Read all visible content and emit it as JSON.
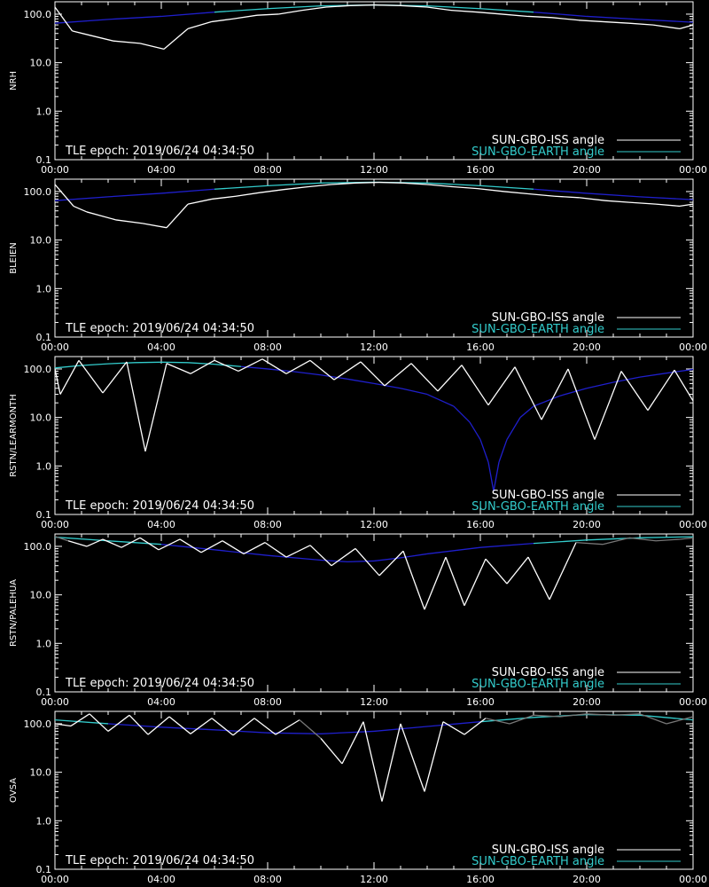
{
  "colors": {
    "background": "#000000",
    "axes": "#ffffff",
    "iss_visible": "#ffffff",
    "iss_dim": "#777777",
    "earth_high": "#33cccc",
    "earth_low": "#1f1fcc"
  },
  "legend": {
    "iss_label": "SUN-GBO-ISS angle",
    "earth_label": "SUN-GBO-EARTH angle"
  },
  "chart_data": [
    {
      "type": "line",
      "ylabel": "NRH",
      "annotation": "TLE epoch: 2019/06/24 04:34:50",
      "x_ticks": [
        "00:00",
        "04:00",
        "08:00",
        "12:00",
        "16:00",
        "20:00",
        "00:00"
      ],
      "y_ticks": [
        "0.1",
        "1.0",
        "10.0",
        "100.0"
      ],
      "xlim": [
        0,
        24
      ],
      "ylim": [
        0.1,
        180
      ],
      "yscale": "log",
      "series": [
        {
          "name": "SUN-GBO-ISS angle",
          "x": [
            0.0,
            0.65,
            1.2,
            2.2,
            3.2,
            4.1,
            5.0,
            5.9,
            6.7,
            7.6,
            8.4,
            9.3,
            10.2,
            11.1,
            12.0,
            13.0,
            14.0,
            14.9,
            15.9,
            16.8,
            17.8,
            18.7,
            19.7,
            20.6,
            21.6,
            22.5,
            23.5,
            24.0
          ],
          "y": [
            140,
            45,
            38,
            28,
            25,
            19,
            50,
            70,
            80,
            95,
            100,
            120,
            140,
            150,
            155,
            150,
            140,
            120,
            110,
            100,
            90,
            85,
            75,
            70,
            65,
            60,
            50,
            60
          ],
          "lows": [
            1,
            2,
            3,
            4,
            6,
            8,
            10,
            12,
            14,
            16,
            18,
            20,
            22,
            24,
            26
          ]
        },
        {
          "name": "SUN-GBO-EARTH angle",
          "x": [
            0,
            2,
            4,
            6,
            8,
            10,
            12,
            14,
            16,
            18,
            20,
            22,
            24
          ],
          "y": [
            65,
            78,
            90,
            110,
            130,
            148,
            155,
            148,
            130,
            110,
            90,
            78,
            68
          ]
        }
      ]
    },
    {
      "type": "line",
      "ylabel": "BLEIEN",
      "annotation": "TLE epoch: 2019/06/24 04:34:50",
      "x_ticks": [
        "00:00",
        "04:00",
        "08:00",
        "12:00",
        "16:00",
        "20:00",
        "00:00"
      ],
      "y_ticks": [
        "0.1",
        "1.0",
        "10.0",
        "100.0"
      ],
      "xlim": [
        0,
        24
      ],
      "ylim": [
        0.1,
        180
      ],
      "yscale": "log",
      "series": [
        {
          "name": "SUN-GBO-ISS angle",
          "x": [
            0.0,
            0.7,
            1.2,
            2.3,
            3.3,
            4.2,
            5.0,
            5.9,
            6.8,
            7.7,
            8.6,
            9.5,
            10.4,
            11.3,
            12.2,
            13.1,
            14.0,
            15.0,
            15.9,
            16.9,
            17.8,
            18.8,
            19.7,
            20.7,
            21.6,
            22.6,
            23.5,
            24.0
          ],
          "y": [
            140,
            50,
            38,
            26,
            22,
            18,
            55,
            70,
            80,
            95,
            110,
            125,
            140,
            150,
            155,
            150,
            140,
            125,
            115,
            100,
            90,
            80,
            75,
            65,
            60,
            55,
            50,
            55
          ],
          "lows": [
            1,
            2,
            3,
            4,
            6,
            8,
            10,
            12,
            14,
            16,
            18,
            20,
            22,
            24,
            26
          ]
        },
        {
          "name": "SUN-GBO-EARTH angle",
          "x": [
            0,
            2,
            4,
            6,
            8,
            10,
            12,
            14,
            16,
            18,
            20,
            22,
            24
          ],
          "y": [
            65,
            78,
            92,
            112,
            132,
            150,
            156,
            150,
            132,
            112,
            92,
            78,
            68
          ]
        }
      ]
    },
    {
      "type": "line",
      "ylabel": "RSTN/LEARMONTH",
      "annotation": "TLE epoch: 2019/06/24 04:34:50",
      "x_ticks": [
        "00:00",
        "04:00",
        "08:00",
        "12:00",
        "16:00",
        "20:00",
        "00:00"
      ],
      "y_ticks": [
        "0.1",
        "1.0",
        "10.0",
        "100.0"
      ],
      "xlim": [
        0,
        24
      ],
      "ylim": [
        0.1,
        180
      ],
      "yscale": "log",
      "series": [
        {
          "name": "SUN-GBO-ISS angle",
          "x": [
            0.0,
            0.2,
            0.9,
            1.8,
            2.7,
            3.4,
            4.2,
            5.1,
            6.0,
            6.9,
            7.8,
            8.7,
            9.6,
            10.5,
            11.5,
            12.4,
            13.4,
            14.4,
            15.3,
            16.3,
            17.3,
            18.3,
            19.3,
            20.3,
            21.3,
            22.3,
            23.3,
            24.0
          ],
          "y": [
            100,
            30,
            150,
            32,
            140,
            2.0,
            130,
            80,
            150,
            90,
            160,
            80,
            150,
            60,
            140,
            45,
            130,
            35,
            120,
            18,
            110,
            9,
            100,
            3.5,
            90,
            14,
            95,
            22
          ],
          "lows": [
            1,
            3,
            5,
            7,
            9,
            11,
            13,
            15,
            17,
            19,
            21,
            23,
            25,
            27
          ]
        },
        {
          "name": "SUN-GBO-EARTH angle",
          "x": [
            0,
            1,
            2,
            3,
            4,
            5,
            6,
            7,
            8,
            9,
            10,
            11,
            12,
            13,
            14,
            15,
            15.6,
            16.0,
            16.3,
            16.5,
            16.7,
            17.0,
            17.5,
            18,
            19,
            20,
            21,
            22,
            23,
            24
          ],
          "y": [
            105,
            118,
            128,
            135,
            138,
            135,
            125,
            112,
            100,
            88,
            75,
            62,
            50,
            40,
            30,
            17,
            8,
            3.5,
            1.2,
            0.3,
            1.2,
            3.5,
            10,
            17,
            28,
            40,
            53,
            68,
            82,
            98
          ]
        }
      ]
    },
    {
      "type": "line",
      "ylabel": "RSTN/PALEHUA",
      "annotation": "TLE epoch: 2019/06/24 04:34:50",
      "x_ticks": [
        "00:00",
        "04:00",
        "08:00",
        "12:00",
        "16:00",
        "20:00",
        "00:00"
      ],
      "y_ticks": [
        "0.1",
        "1.0",
        "10.0",
        "100.0"
      ],
      "xlim": [
        0,
        24
      ],
      "ylim": [
        0.1,
        180
      ],
      "yscale": "log",
      "series": [
        {
          "name": "SUN-GBO-ISS angle",
          "x": [
            0.0,
            0.5,
            1.2,
            1.8,
            2.5,
            3.2,
            3.9,
            4.7,
            5.5,
            6.3,
            7.1,
            7.9,
            8.7,
            9.6,
            10.4,
            11.3,
            12.2,
            13.1,
            13.9,
            14.7,
            15.4,
            16.2,
            17.0,
            17.8,
            18.6,
            19.6,
            20.6,
            21.6,
            22.6,
            23.5,
            24.0
          ],
          "y": [
            160,
            130,
            100,
            140,
            95,
            150,
            85,
            140,
            75,
            130,
            70,
            120,
            60,
            105,
            40,
            90,
            25,
            80,
            5.0,
            60,
            6.0,
            55,
            17,
            60,
            8,
            120,
            110,
            150,
            130,
            140,
            150
          ],
          "lows": [
            2,
            4,
            6,
            8,
            10,
            12,
            14,
            16,
            18,
            20,
            22,
            24
          ]
        },
        {
          "name": "SUN-GBO-EARTH angle",
          "x": [
            0,
            2,
            4,
            6,
            8,
            10,
            11,
            12,
            13,
            14,
            16,
            18,
            20,
            22,
            24
          ],
          "y": [
            155,
            130,
            110,
            85,
            65,
            52,
            48,
            50,
            58,
            70,
            95,
            115,
            135,
            150,
            158
          ]
        }
      ]
    },
    {
      "type": "line",
      "ylabel": "OVSA",
      "annotation": "TLE epoch: 2019/06/24 04:34:50",
      "x_ticks": [
        "00:00",
        "04:00",
        "08:00",
        "12:00",
        "16:00",
        "20:00",
        "00:00"
      ],
      "y_ticks": [
        "0.1",
        "1.0",
        "10.0",
        "100.0"
      ],
      "xlim": [
        0,
        24
      ],
      "ylim": [
        0.1,
        180
      ],
      "yscale": "log",
      "series": [
        {
          "name": "SUN-GBO-ISS angle",
          "x": [
            0.0,
            0.6,
            1.3,
            2.0,
            2.8,
            3.5,
            4.3,
            5.1,
            5.9,
            6.7,
            7.5,
            8.3,
            9.2,
            10.0,
            10.8,
            11.6,
            12.3,
            13.0,
            13.9,
            14.6,
            15.4,
            16.2,
            17.1,
            18.0,
            19.0,
            20.0,
            21.0,
            22.0,
            23.0,
            24.0
          ],
          "y": [
            100,
            90,
            160,
            70,
            150,
            60,
            140,
            62,
            130,
            58,
            130,
            60,
            120,
            50,
            15,
            110,
            2.5,
            100,
            4.0,
            110,
            60,
            130,
            100,
            150,
            140,
            160,
            150,
            160,
            100,
            140
          ],
          "lows": [
            1,
            3,
            5,
            7,
            9,
            11,
            14,
            16,
            18,
            20
          ]
        },
        {
          "name": "SUN-GBO-EARTH angle",
          "x": [
            0,
            2,
            4,
            6,
            8,
            10,
            12,
            14,
            16,
            18,
            20,
            22,
            24
          ],
          "y": [
            120,
            100,
            85,
            75,
            65,
            62,
            70,
            88,
            110,
            135,
            155,
            150,
            120
          ]
        }
      ]
    }
  ]
}
